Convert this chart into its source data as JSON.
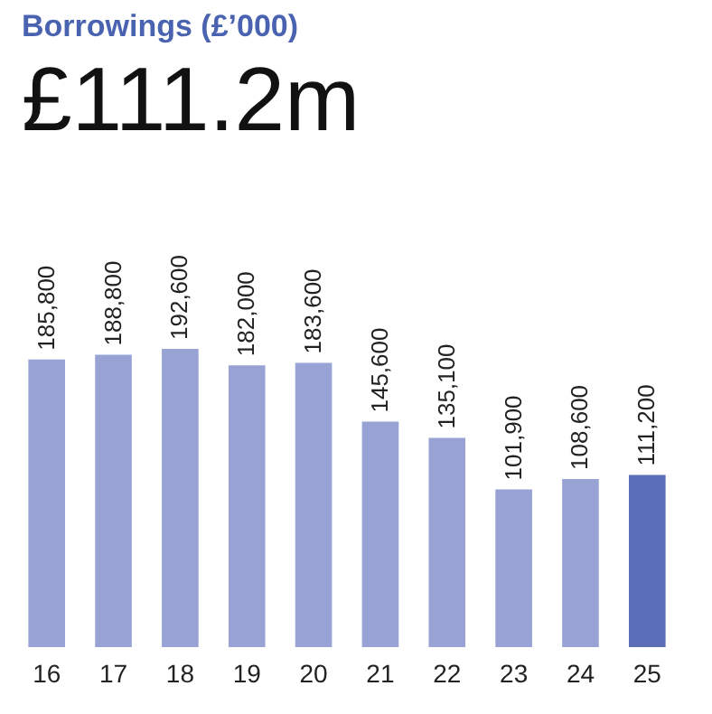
{
  "chart_data": {
    "type": "bar",
    "title": "Borrowings (£’000)",
    "subtitle": "£111.2m",
    "categories": [
      "16",
      "17",
      "18",
      "19",
      "20",
      "21",
      "22",
      "23",
      "24",
      "25"
    ],
    "values": [
      185800,
      188800,
      192600,
      182000,
      183600,
      145600,
      135100,
      101900,
      108600,
      111200
    ],
    "colors": [
      "#98a2d4",
      "#98a2d4",
      "#98a2d4",
      "#98a2d4",
      "#98a2d4",
      "#98a2d4",
      "#98a2d4",
      "#98a2d4",
      "#98a2d4",
      "#5b6fb8"
    ],
    "value_labels": [
      "185,800",
      "188,800",
      "192,600",
      "182,000",
      "183,600",
      "145,600",
      "135,100",
      "101,900",
      "108,600",
      "111,200"
    ],
    "grid": false
  }
}
